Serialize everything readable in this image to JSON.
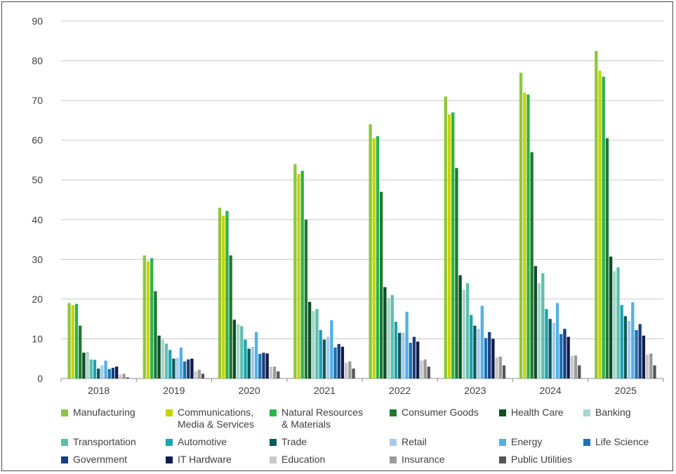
{
  "chart_data": {
    "type": "bar",
    "title": "",
    "xlabel": "",
    "ylabel": "",
    "ylim": [
      0,
      90
    ],
    "yticks": [
      0,
      10,
      20,
      30,
      40,
      50,
      60,
      70,
      80,
      90
    ],
    "grid": true,
    "legend_position": "bottom",
    "categories": [
      "2018",
      "2019",
      "2020",
      "2021",
      "2022",
      "2023",
      "2024",
      "2025"
    ],
    "series": [
      {
        "name": "Manufacturing",
        "color": "#8dc63f",
        "values": [
          19.0,
          31.0,
          43.0,
          54.0,
          64.0,
          71.0,
          77.0,
          82.5
        ]
      },
      {
        "name": "Communications,\nMedia & Services",
        "color": "#c8d400",
        "values": [
          18.5,
          29.5,
          41.0,
          51.5,
          60.5,
          66.5,
          72.0,
          77.5
        ]
      },
      {
        "name": "Natural Resources\n& Materials",
        "color": "#2db34a",
        "values": [
          18.8,
          30.3,
          42.2,
          52.3,
          61.0,
          67.0,
          71.5,
          76.0
        ]
      },
      {
        "name": "Consumer Goods",
        "color": "#1e7a32",
        "values": [
          13.3,
          22.0,
          31.0,
          40.0,
          47.0,
          53.0,
          57.0,
          60.5
        ]
      },
      {
        "name": "Health Care",
        "color": "#0f4d25",
        "values": [
          6.5,
          10.8,
          14.8,
          19.3,
          23.0,
          26.0,
          28.3,
          30.7
        ]
      },
      {
        "name": "Banking",
        "color": "#a8d5ce",
        "values": [
          6.7,
          9.8,
          13.7,
          17.0,
          20.3,
          22.3,
          24.0,
          27.0
        ]
      },
      {
        "name": "Transportation",
        "color": "#5fbfa8",
        "values": [
          4.8,
          8.8,
          13.2,
          17.5,
          21.0,
          24.0,
          26.5,
          28.0
        ]
      },
      {
        "name": "Automotive",
        "color": "#1aa3b4",
        "values": [
          4.7,
          7.2,
          9.8,
          12.2,
          14.3,
          16.0,
          17.5,
          18.5
        ]
      },
      {
        "name": "Trade",
        "color": "#0d5a5a",
        "values": [
          2.5,
          5.0,
          7.5,
          9.8,
          11.5,
          13.3,
          15.0,
          15.7
        ]
      },
      {
        "name": "Retail",
        "color": "#a7cbe8",
        "values": [
          3.3,
          5.2,
          8.0,
          10.5,
          11.5,
          12.5,
          14.0,
          14.5
        ]
      },
      {
        "name": "Energy",
        "color": "#55b0e3",
        "values": [
          4.5,
          7.8,
          11.7,
          14.7,
          16.8,
          18.3,
          19.0,
          19.2
        ]
      },
      {
        "name": "Life Science",
        "color": "#1f6fb5",
        "values": [
          2.4,
          4.3,
          6.2,
          7.8,
          9.0,
          10.2,
          11.2,
          12.2
        ]
      },
      {
        "name": "Government",
        "color": "#173f7a",
        "values": [
          2.7,
          4.8,
          6.5,
          8.7,
          10.5,
          11.7,
          12.5,
          13.7
        ]
      },
      {
        "name": "IT Hardware",
        "color": "#101a50",
        "values": [
          3.0,
          5.0,
          6.3,
          8.0,
          9.3,
          10.0,
          10.5,
          10.8
        ]
      },
      {
        "name": "Education",
        "color": "#c9c9c9",
        "values": [
          1.0,
          1.8,
          3.0,
          4.0,
          4.5,
          5.3,
          5.7,
          6.0
        ]
      },
      {
        "name": "Insurance",
        "color": "#9b9b9b",
        "values": [
          1.2,
          2.2,
          3.0,
          4.3,
          4.8,
          5.5,
          5.8,
          6.3
        ]
      },
      {
        "name": "Public Utilities",
        "color": "#555555",
        "values": [
          0.3,
          1.2,
          1.8,
          2.5,
          3.0,
          3.3,
          3.3,
          3.3
        ]
      }
    ]
  }
}
